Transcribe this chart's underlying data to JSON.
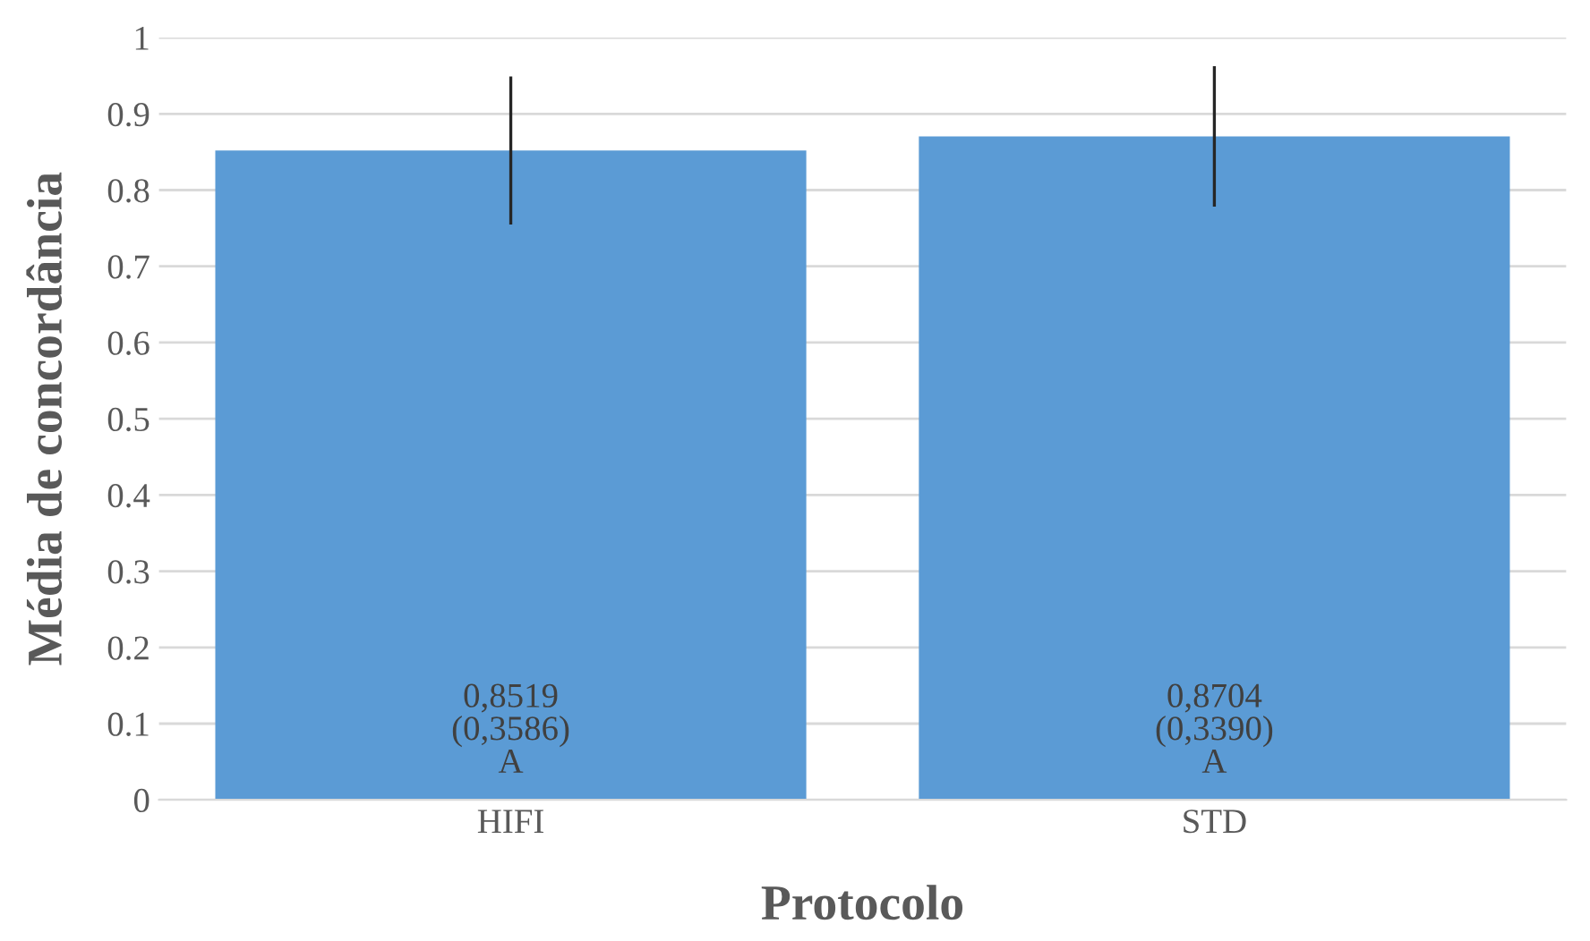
{
  "chart_data": {
    "type": "bar",
    "xlabel": "Protocolo",
    "ylabel": "Média de concordância",
    "categories": [
      "HIFI",
      "STD"
    ],
    "values": [
      0.8519,
      0.8704
    ],
    "errors": [
      0.097,
      0.092
    ],
    "value_labels": [
      "0,8519\n(0,3586)\nA",
      "0,8704\n(0,3390)\nA"
    ],
    "color": "#5b9bd5",
    "ylim": [
      0,
      1
    ],
    "yticks": [
      0,
      0.1,
      0.2,
      0.3,
      0.4,
      0.5,
      0.6,
      0.7,
      0.8,
      0.9,
      1
    ],
    "grid": "y"
  }
}
